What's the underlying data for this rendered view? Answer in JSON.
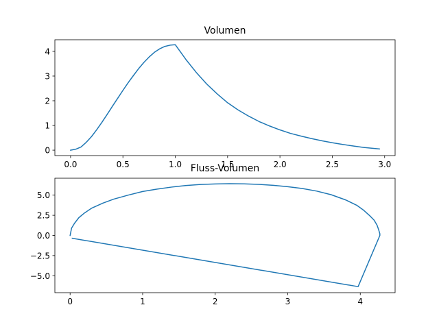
{
  "chart_data": [
    {
      "type": "line",
      "title": "Volumen",
      "xlabel": "",
      "ylabel": "",
      "xlim": [
        -0.15,
        3.1
      ],
      "ylim": [
        -0.22,
        4.47
      ],
      "xticks": [
        0.0,
        0.5,
        1.0,
        1.5,
        2.0,
        2.5,
        3.0
      ],
      "xtick_labels": [
        "0.0",
        "0.5",
        "1.0",
        "1.5",
        "2.0",
        "2.5",
        "3.0"
      ],
      "yticks": [
        0,
        1,
        2,
        3,
        4
      ],
      "ytick_labels": [
        "0",
        "1",
        "2",
        "3",
        "4"
      ],
      "grid": false,
      "color": "#1f77b4",
      "series": [
        {
          "x": [
            0.0,
            0.05,
            0.1,
            0.15,
            0.2,
            0.25,
            0.3,
            0.35,
            0.4,
            0.45,
            0.5,
            0.55,
            0.6,
            0.65,
            0.7,
            0.75,
            0.8,
            0.85,
            0.9,
            0.95,
            1.0,
            1.1,
            1.2,
            1.3,
            1.4,
            1.5,
            1.6,
            1.7,
            1.8,
            1.9,
            2.0,
            2.1,
            2.2,
            2.3,
            2.4,
            2.5,
            2.6,
            2.7,
            2.8,
            2.95
          ],
          "y": [
            0.0,
            0.04,
            0.13,
            0.32,
            0.55,
            0.83,
            1.13,
            1.45,
            1.78,
            2.1,
            2.42,
            2.73,
            3.02,
            3.3,
            3.55,
            3.77,
            3.96,
            4.1,
            4.2,
            4.25,
            4.27,
            3.68,
            3.15,
            2.68,
            2.28,
            1.92,
            1.63,
            1.38,
            1.16,
            0.98,
            0.82,
            0.68,
            0.57,
            0.47,
            0.38,
            0.3,
            0.23,
            0.17,
            0.11,
            0.05
          ]
        }
      ]
    },
    {
      "type": "line",
      "title": "Fluss-Volumen",
      "xlabel": "",
      "ylabel": "",
      "xlim": [
        -0.21,
        4.48
      ],
      "ylim": [
        -7.1,
        7.1
      ],
      "xticks": [
        0,
        1,
        2,
        3,
        4
      ],
      "xtick_labels": [
        "0",
        "1",
        "2",
        "3",
        "4"
      ],
      "yticks": [
        5.0,
        2.5,
        0.0,
        -2.5,
        -5.0
      ],
      "ytick_labels": [
        "5.0",
        "2.5",
        "0.0",
        "−2.5",
        "−5.0"
      ],
      "grid": false,
      "color": "#1f77b4",
      "series": [
        {
          "x": [
            0.0,
            0.02,
            0.06,
            0.12,
            0.2,
            0.3,
            0.45,
            0.6,
            0.8,
            1.0,
            1.2,
            1.4,
            1.6,
            1.8,
            2.0,
            2.2,
            2.4,
            2.6,
            2.8,
            3.0,
            3.2,
            3.4,
            3.6,
            3.8,
            3.95,
            4.05,
            4.13,
            4.19,
            4.23,
            4.25,
            4.27,
            4.27,
            3.97,
            0.03
          ],
          "y": [
            0.0,
            0.9,
            1.5,
            2.2,
            2.8,
            3.4,
            4.0,
            4.5,
            5.0,
            5.45,
            5.75,
            6.0,
            6.2,
            6.32,
            6.39,
            6.42,
            6.4,
            6.34,
            6.22,
            6.05,
            5.82,
            5.5,
            5.05,
            4.4,
            3.75,
            3.1,
            2.45,
            1.9,
            1.3,
            0.8,
            0.2,
            0.0,
            -6.35,
            -0.35
          ]
        }
      ]
    }
  ]
}
